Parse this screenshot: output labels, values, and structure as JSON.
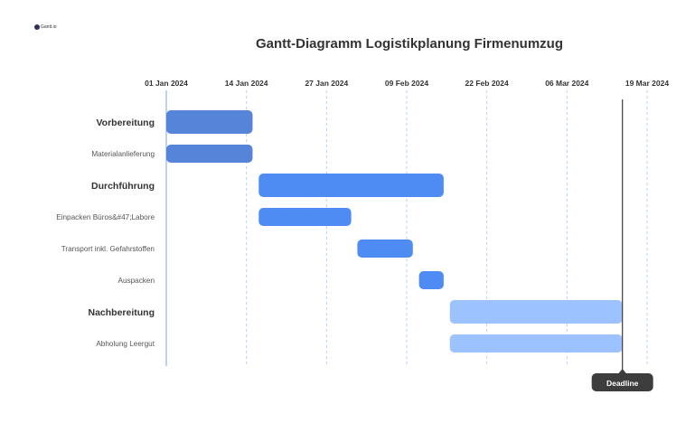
{
  "logo": {
    "text": "Gantt.io"
  },
  "chart_data": {
    "type": "gantt",
    "title": "Gantt-Diagramm Logistikplanung Firmenumzug",
    "x_axis": {
      "min": "2024-01-01",
      "max": "2024-03-21",
      "ticks": [
        "2024-01-01",
        "2024-01-14",
        "2024-01-27",
        "2024-02-09",
        "2024-02-22",
        "2024-03-06",
        "2024-03-19"
      ],
      "tick_labels": [
        "01 Jan 2024",
        "14 Jan 2024",
        "27 Jan 2024",
        "09 Feb 2024",
        "22 Feb 2024",
        "06 Mar 2024",
        "19 Mar 2024"
      ],
      "position": "top",
      "grid": "dashed"
    },
    "tasks": [
      {
        "label": "Vorbereitung",
        "start": "2024-01-01",
        "end": "2024-01-15",
        "group": true,
        "color": "#5584d8"
      },
      {
        "label": "Materialanlieferung",
        "start": "2024-01-01",
        "end": "2024-01-15",
        "group": false,
        "color": "#5584d8"
      },
      {
        "label": "Durchführung",
        "start": "2024-01-16",
        "end": "2024-02-15",
        "group": true,
        "color": "#4e8cf4"
      },
      {
        "label": "Einpacken Büros&#47;Labore",
        "start": "2024-01-16",
        "end": "2024-01-31",
        "group": false,
        "color": "#4e8cf4"
      },
      {
        "label": "Transport inkl. Gefahrstoffen",
        "start": "2024-02-01",
        "end": "2024-02-10",
        "group": false,
        "color": "#4e8cf4"
      },
      {
        "label": "Auspacken",
        "start": "2024-02-11",
        "end": "2024-02-15",
        "group": false,
        "color": "#4e8cf4"
      },
      {
        "label": "Nachbereitung",
        "start": "2024-02-16",
        "end": "2024-03-15",
        "group": true,
        "color": "#9cc2ff"
      },
      {
        "label": "Abholung Leergut",
        "start": "2024-02-16",
        "end": "2024-03-15",
        "group": false,
        "color": "#9cc2ff"
      }
    ],
    "markers": [
      {
        "label": "Deadline",
        "date": "2024-03-15",
        "color": "#3d3d3d"
      }
    ]
  }
}
